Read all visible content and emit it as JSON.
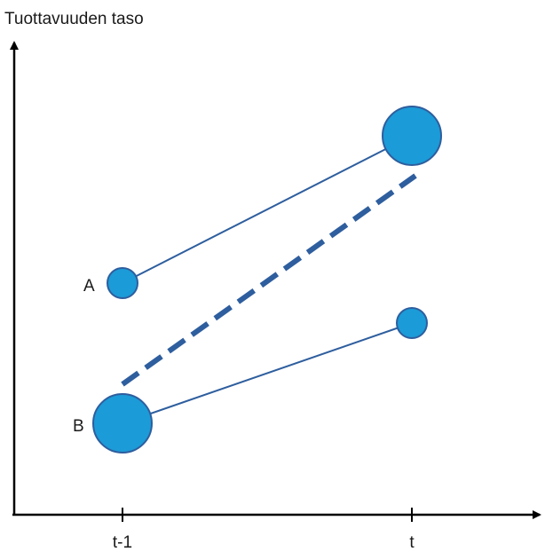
{
  "chart_data": {
    "type": "diagram",
    "ylabel": "Tuottavuuden taso",
    "x_ticks": [
      "t-1",
      "t"
    ],
    "colors": {
      "marker_fill": "#1B9BD7",
      "marker_stroke": "#2E5E9E",
      "connector": "#2E5E9E",
      "dashed_line": "#2E5E9E",
      "axis": "#000000"
    },
    "series": [
      {
        "name": "A",
        "points": [
          {
            "x": "t-1",
            "level": 0.56,
            "size": "small"
          },
          {
            "x": "t",
            "level": 0.93,
            "size": "large"
          }
        ]
      },
      {
        "name": "B",
        "points": [
          {
            "x": "t-1",
            "level": 0.2,
            "size": "large"
          },
          {
            "x": "t",
            "level": 0.47,
            "size": "small"
          }
        ]
      }
    ],
    "aggregate_line": {
      "style": "dashed",
      "from": {
        "x": "t-1",
        "level": 0.3
      },
      "to": {
        "x": "t",
        "level": 0.82
      }
    }
  }
}
